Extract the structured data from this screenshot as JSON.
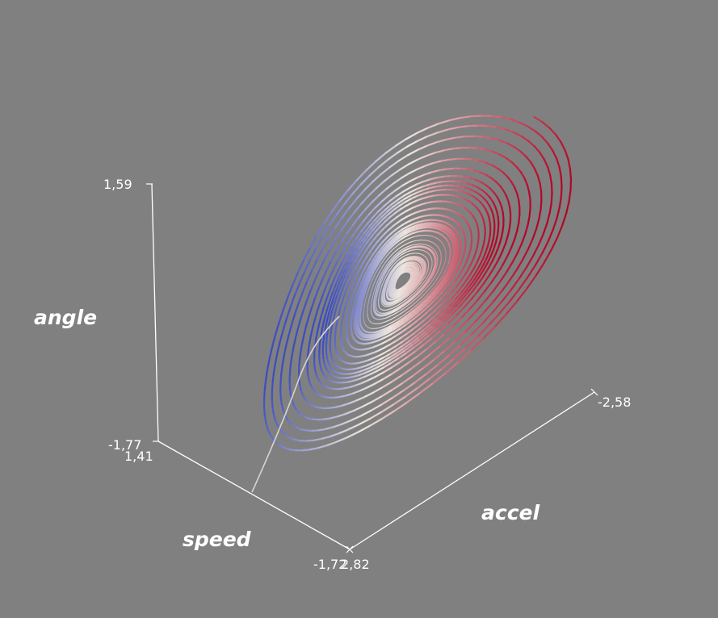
{
  "chart_data": {
    "type": "line",
    "subtype": "3d-phase-space-trajectory",
    "axes": {
      "x": {
        "label": "speed",
        "tick_min": "1,41",
        "tick_max": "-1,72"
      },
      "y": {
        "label": "accel",
        "tick_min": "2,82",
        "tick_max": "-2,58"
      },
      "z": {
        "label": "angle",
        "tick_min": "-1,77",
        "tick_max": "1,59"
      }
    },
    "ranges": {
      "speed": [
        -1.72,
        1.41
      ],
      "accel": [
        -2.58,
        2.82
      ],
      "angle": [
        -1.77,
        1.59
      ]
    },
    "colormap": {
      "low": "#3b4cc0",
      "mid": "#ece5df",
      "high": "#b40426"
    },
    "grid": false,
    "legend": "none"
  }
}
